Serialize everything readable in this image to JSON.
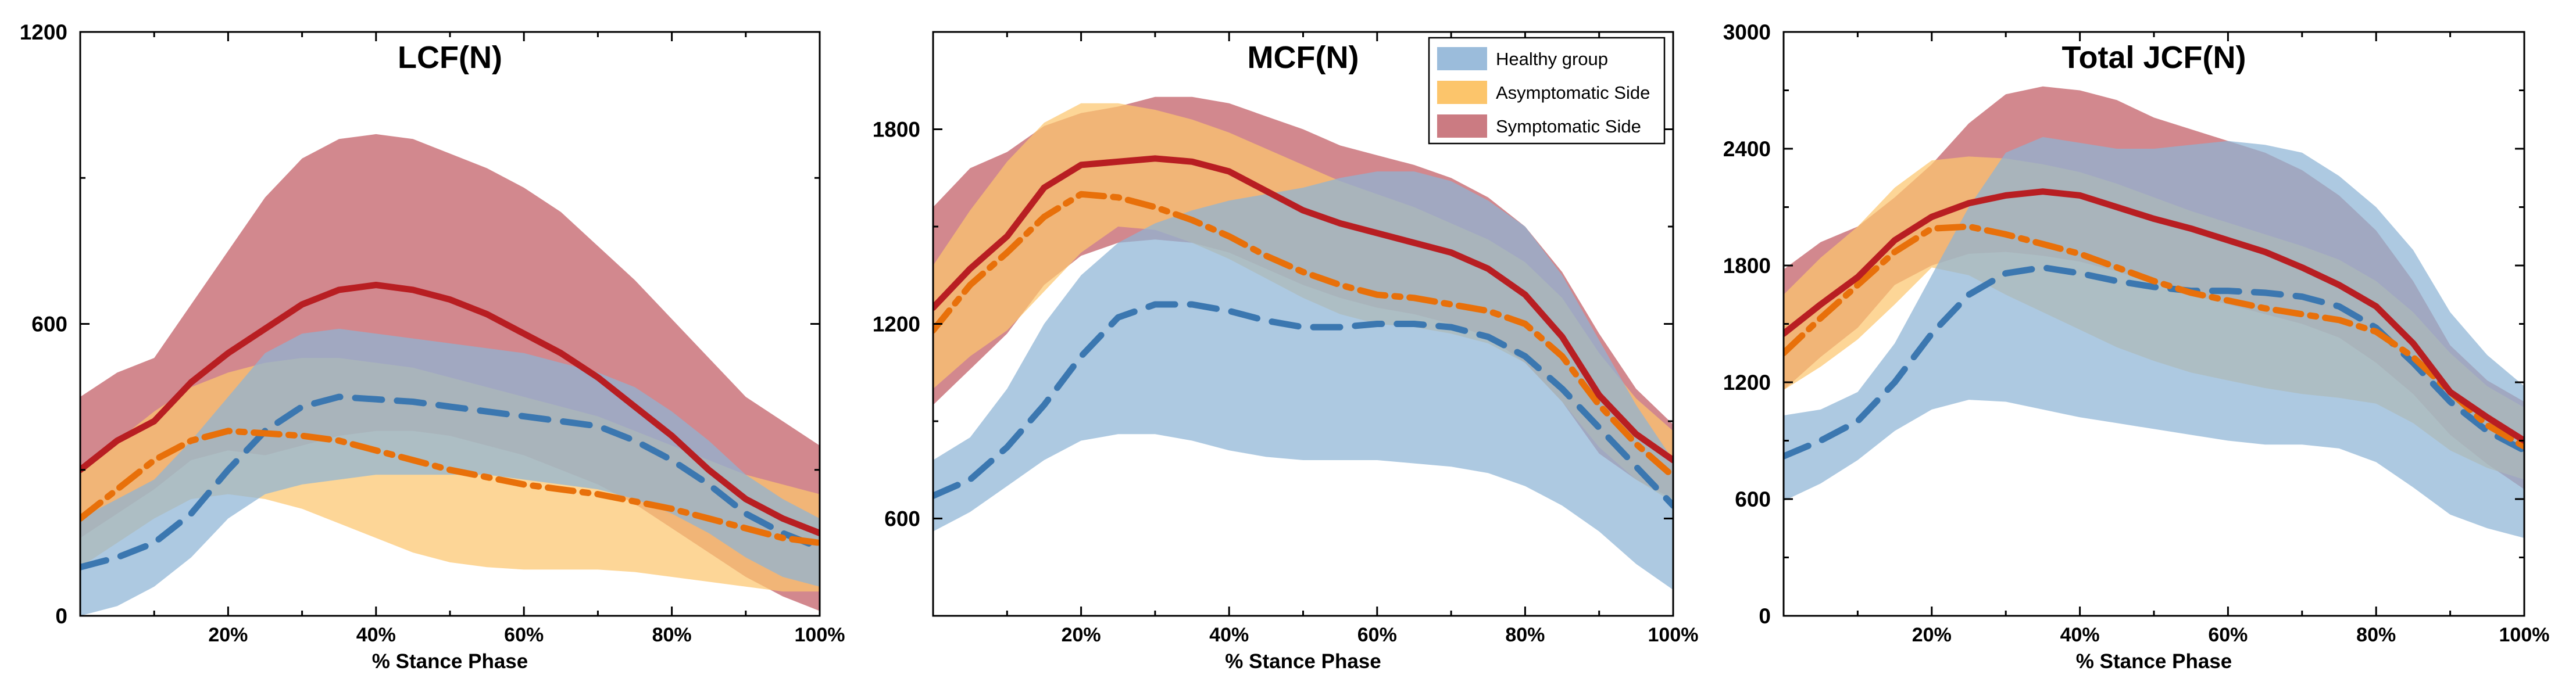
{
  "chart_data": [
    {
      "type": "area",
      "title": "LCF(N)",
      "xlabel": "% Stance Phase",
      "ylabel": "",
      "xlim": [
        0,
        100
      ],
      "ylim": [
        0,
        1200
      ],
      "yticks": [
        0,
        600,
        1200
      ],
      "ytick_labels": [
        "0",
        "600",
        "1200"
      ],
      "xtick_labels": [
        "20%",
        "40%",
        "60%",
        "80%",
        "100%"
      ],
      "x": [
        0,
        5,
        10,
        15,
        20,
        25,
        30,
        35,
        40,
        45,
        50,
        55,
        60,
        65,
        70,
        75,
        80,
        85,
        90,
        95,
        100
      ],
      "series": [
        {
          "name": "Healthy group",
          "color": "#3b77b0",
          "fill": "#8db4d6",
          "dash": "dash",
          "mean": [
            100,
            120,
            150,
            210,
            300,
            380,
            430,
            450,
            445,
            440,
            430,
            420,
            410,
            400,
            390,
            360,
            320,
            270,
            210,
            170,
            140
          ],
          "upper": [
            200,
            240,
            280,
            360,
            450,
            540,
            580,
            590,
            580,
            570,
            560,
            550,
            540,
            520,
            500,
            470,
            420,
            360,
            290,
            240,
            200
          ],
          "lower": [
            0,
            20,
            60,
            120,
            200,
            250,
            270,
            280,
            290,
            290,
            290,
            290,
            280,
            270,
            260,
            240,
            210,
            170,
            120,
            80,
            60
          ]
        },
        {
          "name": "Asymptomatic Side",
          "color": "#e8700a",
          "fill": "#fcc66f",
          "dash": "dashdot",
          "mean": [
            200,
            260,
            320,
            360,
            380,
            375,
            370,
            360,
            340,
            320,
            300,
            285,
            270,
            260,
            250,
            235,
            220,
            200,
            180,
            160,
            150
          ],
          "upper": [
            300,
            360,
            420,
            470,
            500,
            520,
            530,
            530,
            520,
            510,
            490,
            470,
            450,
            430,
            410,
            380,
            350,
            320,
            290,
            270,
            250
          ],
          "lower": [
            100,
            150,
            200,
            240,
            250,
            240,
            220,
            190,
            160,
            130,
            110,
            100,
            95,
            95,
            95,
            90,
            80,
            70,
            60,
            50,
            50
          ]
        },
        {
          "name": "Symptomatic Side",
          "color": "#b81e22",
          "fill": "#c05a63",
          "dash": "solid",
          "mean": [
            300,
            360,
            400,
            480,
            540,
            590,
            640,
            670,
            680,
            670,
            650,
            620,
            580,
            540,
            490,
            430,
            370,
            300,
            240,
            200,
            170
          ],
          "upper": [
            450,
            500,
            530,
            640,
            750,
            860,
            940,
            980,
            990,
            980,
            950,
            920,
            880,
            830,
            760,
            690,
            610,
            530,
            450,
            400,
            350
          ],
          "lower": [
            160,
            210,
            260,
            320,
            340,
            330,
            350,
            370,
            380,
            380,
            370,
            350,
            330,
            300,
            270,
            230,
            180,
            130,
            80,
            40,
            10
          ]
        }
      ]
    },
    {
      "type": "area",
      "title": "MCF(N)",
      "xlabel": "% Stance Phase",
      "ylabel": "",
      "xlim": [
        0,
        100
      ],
      "ylim": [
        300,
        2100
      ],
      "yticks": [
        600,
        1200,
        1800
      ],
      "ytick_labels": [
        "600",
        "1200",
        "1800"
      ],
      "xtick_labels": [
        "20%",
        "40%",
        "60%",
        "80%",
        "100%"
      ],
      "x": [
        0,
        5,
        10,
        15,
        20,
        25,
        30,
        35,
        40,
        45,
        50,
        55,
        60,
        65,
        70,
        75,
        80,
        85,
        90,
        95,
        100
      ],
      "series": [
        {
          "name": "Healthy group",
          "color": "#3b77b0",
          "fill": "#8db4d6",
          "dash": "dash",
          "mean": [
            670,
            720,
            820,
            950,
            1100,
            1220,
            1260,
            1260,
            1240,
            1210,
            1190,
            1190,
            1200,
            1200,
            1190,
            1160,
            1100,
            1000,
            880,
            760,
            640
          ],
          "upper": [
            780,
            850,
            1000,
            1200,
            1350,
            1450,
            1510,
            1550,
            1580,
            1600,
            1620,
            1650,
            1670,
            1670,
            1640,
            1580,
            1500,
            1350,
            1150,
            950,
            780
          ],
          "lower": [
            560,
            620,
            700,
            780,
            840,
            860,
            860,
            840,
            810,
            790,
            780,
            780,
            780,
            770,
            760,
            740,
            700,
            640,
            560,
            460,
            380
          ]
        },
        {
          "name": "Asymptomatic Side",
          "color": "#e8700a",
          "fill": "#fcc66f",
          "dash": "dashdot",
          "mean": [
            1180,
            1320,
            1420,
            1530,
            1600,
            1590,
            1560,
            1520,
            1470,
            1410,
            1360,
            1320,
            1290,
            1280,
            1260,
            1240,
            1200,
            1100,
            950,
            830,
            730
          ],
          "upper": [
            1380,
            1550,
            1700,
            1820,
            1880,
            1880,
            1860,
            1830,
            1790,
            1740,
            1690,
            1640,
            1600,
            1560,
            1510,
            1460,
            1390,
            1280,
            1110,
            970,
            870
          ],
          "lower": [
            1000,
            1100,
            1180,
            1300,
            1420,
            1500,
            1490,
            1450,
            1400,
            1340,
            1280,
            1230,
            1200,
            1190,
            1170,
            1140,
            1080,
            960,
            820,
            720,
            650
          ]
        },
        {
          "name": "Symptomatic Side",
          "color": "#b81e22",
          "fill": "#c05a63",
          "dash": "solid",
          "mean": [
            1250,
            1370,
            1470,
            1620,
            1690,
            1700,
            1710,
            1700,
            1670,
            1610,
            1550,
            1510,
            1480,
            1450,
            1420,
            1370,
            1290,
            1160,
            980,
            860,
            780
          ],
          "upper": [
            1560,
            1680,
            1730,
            1810,
            1850,
            1870,
            1900,
            1900,
            1880,
            1840,
            1800,
            1750,
            1720,
            1690,
            1650,
            1590,
            1500,
            1360,
            1170,
            1000,
            890
          ],
          "lower": [
            950,
            1060,
            1170,
            1320,
            1410,
            1450,
            1460,
            1450,
            1420,
            1370,
            1320,
            1280,
            1250,
            1230,
            1200,
            1160,
            1080,
            960,
            800,
            720,
            660
          ]
        }
      ]
    },
    {
      "type": "area",
      "title": "Total JCF(N)",
      "xlabel": "% Stance Phase",
      "ylabel": "",
      "xlim": [
        0,
        100
      ],
      "ylim": [
        0,
        3000
      ],
      "yticks": [
        0,
        600,
        1200,
        1800,
        2400,
        3000
      ],
      "ytick_labels": [
        "0",
        "600",
        "1200",
        "1800",
        "2400",
        "3000"
      ],
      "xtick_labels": [
        "20%",
        "40%",
        "60%",
        "80%",
        "100%"
      ],
      "x": [
        0,
        5,
        10,
        15,
        20,
        25,
        30,
        35,
        40,
        45,
        50,
        55,
        60,
        65,
        70,
        75,
        80,
        85,
        90,
        95,
        100
      ],
      "series": [
        {
          "name": "Healthy group",
          "color": "#3b77b0",
          "fill": "#8db4d6",
          "dash": "dash",
          "mean": [
            820,
            900,
            1000,
            1200,
            1450,
            1650,
            1760,
            1790,
            1760,
            1720,
            1690,
            1670,
            1670,
            1660,
            1640,
            1590,
            1480,
            1300,
            1100,
            950,
            850
          ],
          "upper": [
            1030,
            1060,
            1150,
            1400,
            1750,
            2100,
            2380,
            2460,
            2430,
            2400,
            2400,
            2420,
            2440,
            2420,
            2380,
            2260,
            2100,
            1880,
            1560,
            1340,
            1180
          ],
          "lower": [
            590,
            680,
            800,
            950,
            1060,
            1110,
            1100,
            1060,
            1020,
            990,
            960,
            930,
            900,
            880,
            880,
            860,
            790,
            660,
            520,
            450,
            400
          ]
        },
        {
          "name": "Asymptomatic Side",
          "color": "#e8700a",
          "fill": "#fcc66f",
          "dash": "dashdot",
          "mean": [
            1350,
            1530,
            1700,
            1870,
            1990,
            2000,
            1960,
            1910,
            1860,
            1790,
            1720,
            1660,
            1620,
            1580,
            1550,
            1520,
            1460,
            1330,
            1150,
            980,
            870
          ],
          "upper": [
            1650,
            1840,
            2000,
            2200,
            2340,
            2360,
            2350,
            2320,
            2280,
            2220,
            2150,
            2080,
            2020,
            1960,
            1900,
            1830,
            1720,
            1560,
            1350,
            1180,
            1070
          ],
          "lower": [
            1160,
            1280,
            1420,
            1600,
            1790,
            1750,
            1650,
            1560,
            1470,
            1380,
            1310,
            1250,
            1210,
            1170,
            1140,
            1120,
            1090,
            990,
            850,
            760,
            700
          ]
        },
        {
          "name": "Symptomatic Side",
          "color": "#b81e22",
          "fill": "#c05a63",
          "dash": "solid",
          "mean": [
            1450,
            1600,
            1740,
            1930,
            2050,
            2120,
            2160,
            2180,
            2160,
            2100,
            2040,
            1990,
            1930,
            1870,
            1790,
            1700,
            1590,
            1400,
            1150,
            1020,
            900
          ],
          "upper": [
            1780,
            1920,
            2000,
            2150,
            2320,
            2530,
            2680,
            2720,
            2700,
            2650,
            2560,
            2500,
            2440,
            2380,
            2290,
            2160,
            1980,
            1720,
            1390,
            1210,
            1100
          ],
          "lower": [
            1160,
            1330,
            1480,
            1700,
            1800,
            1860,
            1870,
            1850,
            1820,
            1770,
            1710,
            1650,
            1600,
            1550,
            1500,
            1430,
            1300,
            1140,
            930,
            780,
            650
          ]
        }
      ]
    }
  ],
  "legend": {
    "position": "top-right of middle panel",
    "entries": [
      {
        "label": "Healthy group",
        "swatch": "#9bbcdb"
      },
      {
        "label": "Asymptomatic Side",
        "swatch": "#fcc56b"
      },
      {
        "label": "Symptomatic Side",
        "swatch": "#cb7b82"
      }
    ]
  }
}
